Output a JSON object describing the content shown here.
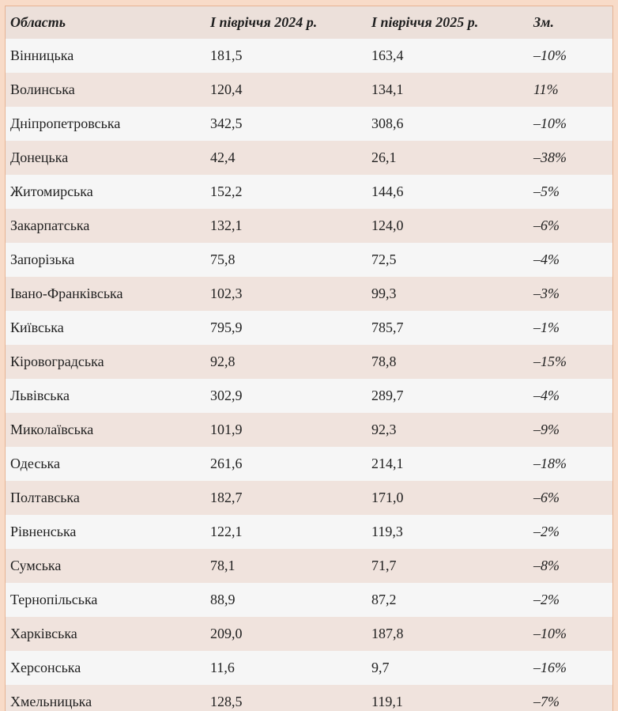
{
  "chart_data": {
    "type": "table",
    "columns": [
      "Область",
      "І півріччя 2024 р.",
      "І півріччя 2025 р.",
      "Зм."
    ],
    "rows": [
      [
        "Вінницька",
        "181,5",
        "163,4",
        "–10%"
      ],
      [
        "Волинська",
        "120,4",
        "134,1",
        "11%"
      ],
      [
        "Дніпропетровська",
        "342,5",
        "308,6",
        "–10%"
      ],
      [
        "Донецька",
        "42,4",
        "26,1",
        "–38%"
      ],
      [
        "Житомирська",
        "152,2",
        "144,6",
        "–5%"
      ],
      [
        "Закарпатська",
        "132,1",
        "124,0",
        "–6%"
      ],
      [
        "Запорізька",
        "75,8",
        "72,5",
        "–4%"
      ],
      [
        "Івано-Франківська",
        "102,3",
        "99,3",
        "–3%"
      ],
      [
        "Київська",
        "795,9",
        "785,7",
        "–1%"
      ],
      [
        "Кіровоградська",
        "92,8",
        "78,8",
        "–15%"
      ],
      [
        "Львівська",
        "302,9",
        "289,7",
        "–4%"
      ],
      [
        "Миколаївська",
        "101,9",
        "92,3",
        "–9%"
      ],
      [
        "Одеська",
        "261,6",
        "214,1",
        "–18%"
      ],
      [
        "Полтавська",
        "182,7",
        "171,0",
        "–6%"
      ],
      [
        "Рівненська",
        "122,1",
        "119,3",
        "–2%"
      ],
      [
        "Сумська",
        "78,1",
        "71,7",
        "–8%"
      ],
      [
        "Тернопільська",
        "88,9",
        "87,2",
        "–2%"
      ],
      [
        "Харківська",
        "209,0",
        "187,8",
        "–10%"
      ],
      [
        "Херсонська",
        "11,6",
        "9,7",
        "–16%"
      ],
      [
        "Хмельницька",
        "128,5",
        "119,1",
        "–7%"
      ]
    ]
  },
  "colors": {
    "page_background": "#f8dbc8",
    "border": "#e7b393",
    "header_background": "#ece0da",
    "row_pink": "#f0e3dd",
    "row_white": "#f6f6f6",
    "text": "#1f1f1f"
  }
}
